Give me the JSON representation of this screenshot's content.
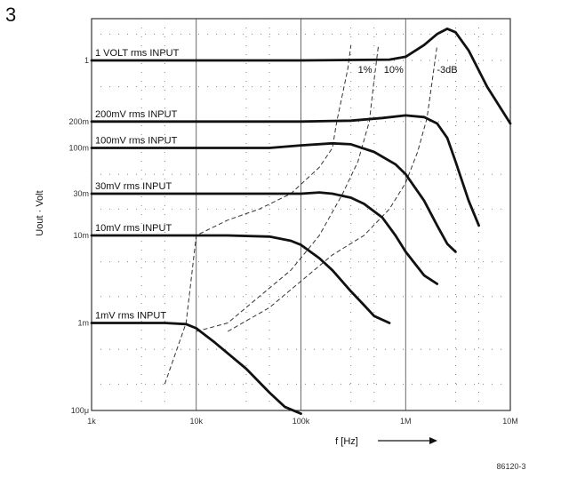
{
  "figure_number": "3",
  "figure_code": "86120-3",
  "chart_data": {
    "type": "line",
    "x_scale": "log",
    "y_scale": "log",
    "xlim": [
      1000,
      10000000
    ],
    "ylim": [
      0.0001,
      3
    ],
    "xlabel": "f [Hz]",
    "ylabel": "Uout · Volt",
    "grid": true,
    "x_ticks": [
      {
        "value": 1000,
        "label": "1k"
      },
      {
        "value": 10000,
        "label": "10k"
      },
      {
        "value": 100000,
        "label": "100k"
      },
      {
        "value": 1000000,
        "label": "1M"
      },
      {
        "value": 10000000,
        "label": "10M"
      }
    ],
    "y_ticks": [
      {
        "value": 0.0001,
        "label": "100μ"
      },
      {
        "value": 0.001,
        "label": "1m"
      },
      {
        "value": 0.01,
        "label": "10m"
      },
      {
        "value": 0.03,
        "label": "30m"
      },
      {
        "value": 0.1,
        "label": "100m"
      },
      {
        "value": 0.2,
        "label": "200m"
      },
      {
        "value": 1,
        "label": "1"
      }
    ],
    "series": [
      {
        "name": "1 VOLT rms INPUT",
        "x": [
          1000,
          100000,
          700000,
          1000000,
          1500000,
          2000000,
          2500000,
          3000000,
          4000000,
          6000000,
          10000000
        ],
        "y": [
          1,
          1,
          1.02,
          1.1,
          1.5,
          2.0,
          2.3,
          2.1,
          1.3,
          0.5,
          0.19
        ]
      },
      {
        "name": "200mV rms INPUT",
        "x": [
          1000,
          100000,
          300000,
          600000,
          1000000,
          1500000,
          2000000,
          2500000,
          3000000,
          4000000,
          5000000
        ],
        "y": [
          0.2,
          0.2,
          0.205,
          0.22,
          0.235,
          0.225,
          0.19,
          0.13,
          0.07,
          0.025,
          0.013
        ]
      },
      {
        "name": "100mV rms INPUT",
        "x": [
          1000,
          50000,
          100000,
          200000,
          300000,
          500000,
          800000,
          1000000,
          1500000,
          2000000,
          2500000,
          3000000
        ],
        "y": [
          0.1,
          0.1,
          0.107,
          0.113,
          0.11,
          0.09,
          0.065,
          0.05,
          0.025,
          0.013,
          0.008,
          0.0065
        ]
      },
      {
        "name": "30mV rms INPUT",
        "x": [
          1000,
          100000,
          150000,
          200000,
          300000,
          400000,
          600000,
          800000,
          1000000,
          1500000,
          2000000
        ],
        "y": [
          0.03,
          0.03,
          0.031,
          0.03,
          0.027,
          0.023,
          0.016,
          0.01,
          0.0065,
          0.0035,
          0.0028
        ]
      },
      {
        "name": "10mV rms INPUT",
        "x": [
          1000,
          20000,
          50000,
          80000,
          100000,
          150000,
          200000,
          300000,
          400000,
          500000,
          700000
        ],
        "y": [
          0.01,
          0.01,
          0.0097,
          0.0087,
          0.0078,
          0.0055,
          0.004,
          0.0023,
          0.0016,
          0.0012,
          0.001
        ]
      },
      {
        "name": "1mV rms INPUT",
        "x": [
          1000,
          5000,
          8000,
          10000,
          15000,
          20000,
          30000,
          50000,
          70000,
          100000
        ],
        "y": [
          0.001,
          0.001,
          0.00097,
          0.00087,
          0.0006,
          0.00045,
          0.0003,
          0.00016,
          0.00011,
          9.2e-05
        ]
      }
    ],
    "contours": [
      {
        "name": "1%",
        "x": [
          5000,
          8000,
          10000,
          20000,
          40000,
          80000,
          150000,
          200000,
          220000,
          280000,
          300000
        ],
        "y": [
          0.0002,
          0.001,
          0.01,
          0.015,
          0.02,
          0.03,
          0.06,
          0.1,
          0.2,
          0.8,
          1.5
        ]
      },
      {
        "name": "10%",
        "x": [
          10000,
          20000,
          40000,
          80000,
          150000,
          250000,
          350000,
          450000,
          500000,
          550000
        ],
        "y": [
          0.0008,
          0.001,
          0.002,
          0.004,
          0.01,
          0.03,
          0.07,
          0.2,
          0.6,
          1.5
        ]
      },
      {
        "name": "-3dB",
        "x": [
          20000,
          50000,
          100000,
          200000,
          400000,
          700000,
          1000000,
          1300000,
          1600000,
          1800000,
          2000000
        ],
        "y": [
          0.0008,
          0.0015,
          0.003,
          0.006,
          0.01,
          0.02,
          0.04,
          0.09,
          0.22,
          0.6,
          1.5
        ]
      }
    ],
    "curve_labels": [
      "1 VOLT rms INPUT",
      "200mV rms INPUT",
      "100mV rms INPUT",
      "30mV rms INPUT",
      "10mV rms INPUT",
      "1mV rms INPUT"
    ],
    "contour_labels": [
      "1%",
      "10%",
      "-3dB"
    ]
  }
}
